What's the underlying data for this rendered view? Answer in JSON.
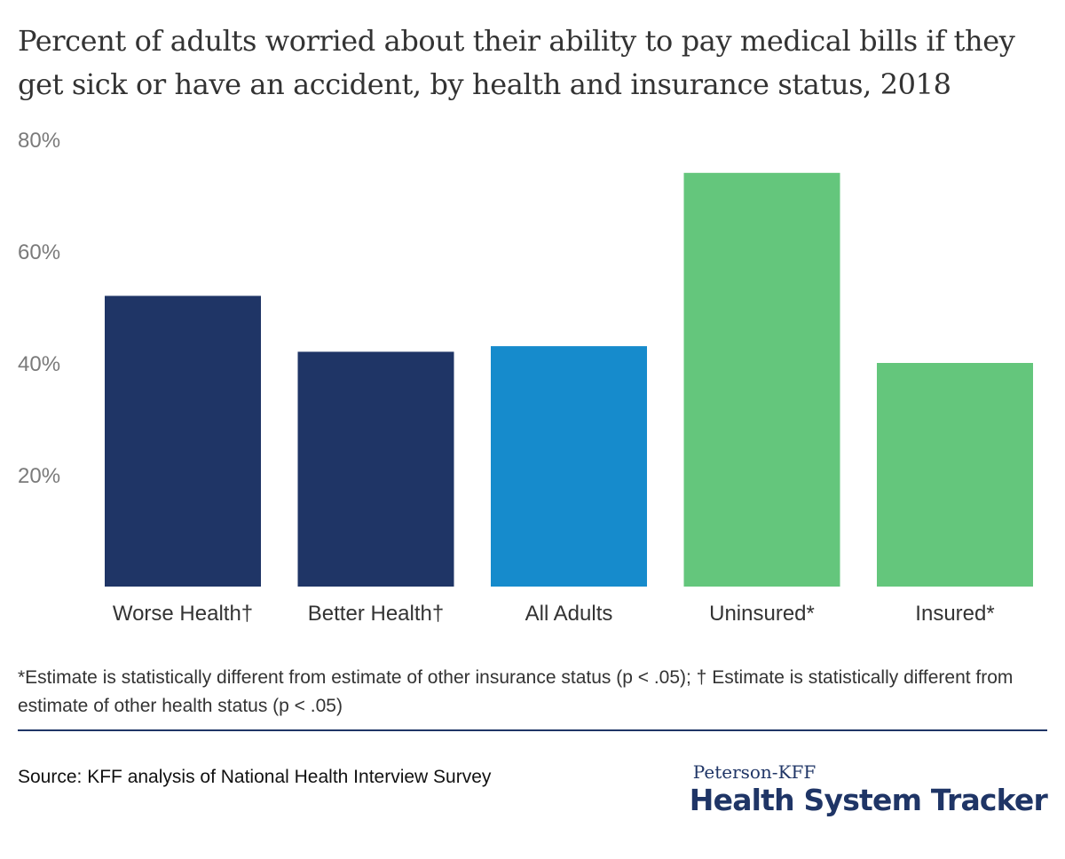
{
  "chart_data": {
    "type": "bar",
    "title": "Percent of adults worried about their ability to pay medical bills if they get sick or have an accident, by health and insurance status, 2018",
    "categories": [
      "Worse Health†",
      "Better Health†",
      "All Adults",
      "Uninsured*",
      "Insured*"
    ],
    "values": [
      52,
      42,
      43,
      74,
      40
    ],
    "colors": [
      "#1f3566",
      "#1f3566",
      "#168bcc",
      "#64c67c",
      "#64c67c"
    ],
    "yticks": [
      20,
      40,
      60,
      80
    ],
    "ytick_labels": [
      "20%",
      "40%",
      "60%",
      "80%"
    ],
    "ylim": [
      0,
      80
    ],
    "grid": false,
    "legend": "none"
  },
  "footnote": "*Estimate is statistically different from estimate of other insurance status (p < .05); † Estimate is statistically different from estimate of other health status (p < .05)",
  "source": "Source: KFF analysis of National Health Interview Survey",
  "brand": {
    "top": "Peterson-KFF",
    "main": "Health System Tracker",
    "color": "#1f3566"
  }
}
